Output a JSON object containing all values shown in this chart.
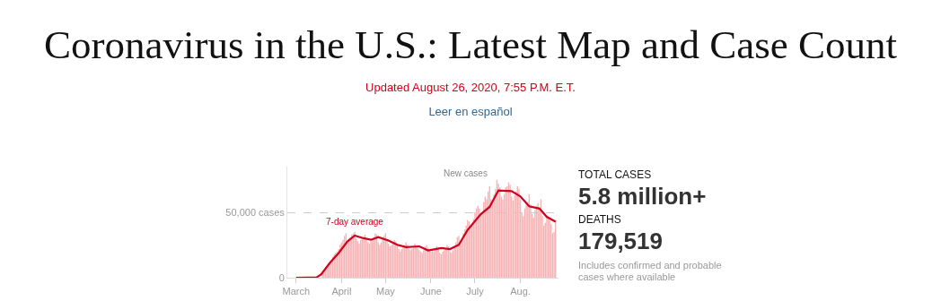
{
  "chart_data": [
    {
      "type": "bar",
      "title": "Coronavirus in the U.S.: Latest Map and Case Count",
      "subtitle": "Updated August 26, 2020, 7:55 P.M. E.T.",
      "annotations": [
        "Leer en español"
      ],
      "x": [
        "2020-03-19",
        "2020-03-20",
        "2020-03-21",
        "2020-03-22",
        "2020-03-23",
        "2020-03-24",
        "2020-03-25",
        "2020-03-26",
        "2020-03-27",
        "2020-03-28",
        "2020-03-29",
        "2020-03-30",
        "2020-03-31",
        "2020-04-01",
        "2020-04-02",
        "2020-04-03",
        "2020-04-04",
        "2020-04-05",
        "2020-04-06",
        "2020-04-07",
        "2020-04-08",
        "2020-04-09",
        "2020-04-10",
        "2020-04-11",
        "2020-04-12",
        "2020-04-13",
        "2020-04-14",
        "2020-04-15",
        "2020-04-16",
        "2020-04-17",
        "2020-04-18",
        "2020-04-19",
        "2020-04-20",
        "2020-04-21",
        "2020-04-22",
        "2020-04-23",
        "2020-04-24",
        "2020-04-25",
        "2020-04-26",
        "2020-04-27",
        "2020-04-28",
        "2020-04-29",
        "2020-04-30",
        "2020-05-01",
        "2020-05-02",
        "2020-05-03",
        "2020-05-04",
        "2020-05-05",
        "2020-05-06",
        "2020-05-07",
        "2020-05-08",
        "2020-05-09",
        "2020-05-10",
        "2020-05-11",
        "2020-05-12",
        "2020-05-13",
        "2020-05-14",
        "2020-05-15",
        "2020-05-16",
        "2020-05-17",
        "2020-05-18",
        "2020-05-19",
        "2020-05-20",
        "2020-05-21",
        "2020-05-22",
        "2020-05-23",
        "2020-05-24",
        "2020-05-25",
        "2020-05-26",
        "2020-05-27",
        "2020-05-28",
        "2020-05-29",
        "2020-05-30",
        "2020-05-31",
        "2020-06-01",
        "2020-06-02",
        "2020-06-03",
        "2020-06-04",
        "2020-06-05",
        "2020-06-06",
        "2020-06-07",
        "2020-06-08",
        "2020-06-09",
        "2020-06-10",
        "2020-06-11",
        "2020-06-12",
        "2020-06-13",
        "2020-06-14",
        "2020-06-15",
        "2020-06-16",
        "2020-06-17",
        "2020-06-18",
        "2020-06-19",
        "2020-06-20",
        "2020-06-21",
        "2020-06-22",
        "2020-06-23",
        "2020-06-24",
        "2020-06-25",
        "2020-06-26",
        "2020-06-27",
        "2020-06-28",
        "2020-06-29",
        "2020-06-30",
        "2020-07-01",
        "2020-07-02",
        "2020-07-03",
        "2020-07-04",
        "2020-07-05",
        "2020-07-06",
        "2020-07-07",
        "2020-07-08",
        "2020-07-09",
        "2020-07-10",
        "2020-07-11",
        "2020-07-12",
        "2020-07-13",
        "2020-07-14",
        "2020-07-15",
        "2020-07-16",
        "2020-07-17",
        "2020-07-18",
        "2020-07-19",
        "2020-07-20",
        "2020-07-21",
        "2020-07-22",
        "2020-07-23",
        "2020-07-24",
        "2020-07-25",
        "2020-07-26",
        "2020-07-27",
        "2020-07-28",
        "2020-07-29",
        "2020-07-30",
        "2020-07-31",
        "2020-08-01",
        "2020-08-02",
        "2020-08-03",
        "2020-08-04",
        "2020-08-05",
        "2020-08-06",
        "2020-08-07",
        "2020-08-08",
        "2020-08-09",
        "2020-08-10",
        "2020-08-11",
        "2020-08-12",
        "2020-08-13",
        "2020-08-14",
        "2020-08-15",
        "2020-08-16",
        "2020-08-17",
        "2020-08-18",
        "2020-08-19",
        "2020-08-20",
        "2020-08-21",
        "2020-08-22",
        "2020-08-23",
        "2020-08-24",
        "2020-08-25"
      ],
      "series": [
        {
          "name": "New cases",
          "type": "bar",
          "color": "#f6b3b5",
          "values": [
            4000,
            5500,
            7000,
            8000,
            10000,
            11000,
            13000,
            16000,
            18000,
            19000,
            20000,
            22000,
            25000,
            27000,
            29000,
            32000,
            34000,
            28000,
            30000,
            31000,
            33000,
            34000,
            35000,
            30000,
            28000,
            26000,
            29000,
            30000,
            31000,
            33000,
            29000,
            27000,
            26000,
            28000,
            29000,
            31000,
            34000,
            33000,
            27000,
            25000,
            27000,
            30000,
            32000,
            34000,
            29000,
            26000,
            24000,
            25000,
            27000,
            29000,
            28000,
            26000,
            22000,
            20000,
            22000,
            24000,
            25000,
            27000,
            25000,
            22000,
            21000,
            22000,
            23000,
            26000,
            24000,
            23000,
            21000,
            20000,
            19000,
            21000,
            24000,
            25000,
            23000,
            22000,
            20000,
            21000,
            20000,
            22000,
            24000,
            23000,
            19000,
            18000,
            20000,
            21000,
            22000,
            25000,
            24000,
            20000,
            19000,
            21000,
            24000,
            27000,
            31000,
            32000,
            27000,
            29000,
            34000,
            37000,
            40000,
            44000,
            43000,
            40000,
            41000,
            45000,
            50000,
            53000,
            55000,
            53000,
            48000,
            50000,
            58000,
            62000,
            60000,
            66000,
            70000,
            60000,
            58000,
            64000,
            68000,
            75000,
            72000,
            69000,
            62000,
            60000,
            64000,
            69000,
            70000,
            73000,
            71000,
            62000,
            59000,
            63000,
            66000,
            70000,
            68000,
            60000,
            50000,
            47000,
            53000,
            56000,
            58000,
            64000,
            56000,
            49000,
            46000,
            52000,
            55000,
            57000,
            52000,
            60000,
            47000,
            40000,
            42000,
            47000,
            46000,
            44000,
            41000,
            34000,
            35000,
            44000
          ]
        },
        {
          "name": "7-day average",
          "type": "line",
          "color": "#d0021b",
          "x": [
            "2020-03-01",
            "2020-03-15",
            "2020-03-18",
            "2020-03-24",
            "2020-03-30",
            "2020-04-05",
            "2020-04-10",
            "2020-04-16",
            "2020-04-21",
            "2020-04-26",
            "2020-05-03",
            "2020-05-09",
            "2020-05-15",
            "2020-05-24",
            "2020-05-30",
            "2020-06-08",
            "2020-06-14",
            "2020-06-20",
            "2020-06-26",
            "2020-07-05",
            "2020-07-11",
            "2020-07-17",
            "2020-07-26",
            "2020-08-01",
            "2020-08-07",
            "2020-08-14",
            "2020-08-19",
            "2020-08-25"
          ],
          "values": [
            0,
            300,
            2500,
            11300,
            18900,
            27700,
            32300,
            30200,
            29000,
            31000,
            28500,
            25200,
            23400,
            24000,
            20900,
            22700,
            21900,
            25200,
            36500,
            48600,
            54200,
            66800,
            66300,
            62200,
            54700,
            52900,
            46600,
            42800
          ]
        }
      ],
      "xlim": [
        "2020-02-24",
        "2020-08-27"
      ],
      "xticks": [
        {
          "value": "2020-03-01",
          "label": "March"
        },
        {
          "value": "2020-04-01",
          "label": "April"
        },
        {
          "value": "2020-05-01",
          "label": "May"
        },
        {
          "value": "2020-06-01",
          "label": "June"
        },
        {
          "value": "2020-07-01",
          "label": "July"
        },
        {
          "value": "2020-08-01",
          "label": "Aug."
        }
      ],
      "ylim": [
        0,
        85000
      ],
      "yticks": [
        0,
        {
          "value": 50000,
          "label": "50,000 cases"
        }
      ],
      "grid": "y"
    },
    {
      "type": "other",
      "annotations": [
        "TOTAL CASES",
        "5.8 million+",
        "DEATHS",
        "179,519",
        "Includes confirmed and probable cases where available"
      ]
    }
  ]
}
